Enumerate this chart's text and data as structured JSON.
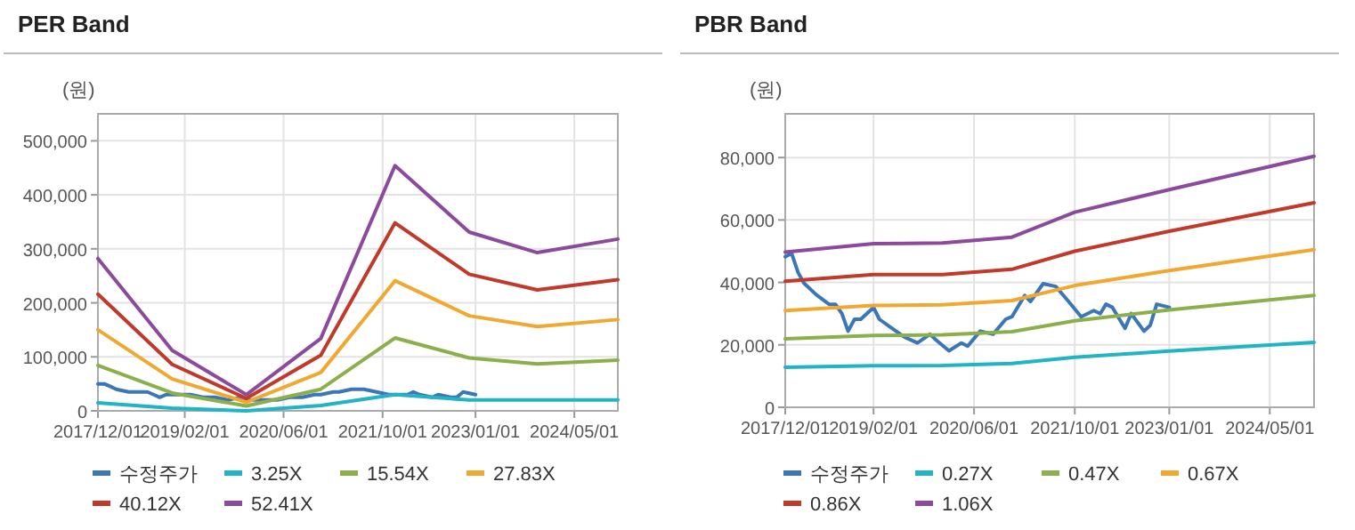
{
  "chart_data": [
    {
      "type": "line",
      "title": "PER Band",
      "ylabel": "(원)",
      "xlim": [
        "2017-12-01",
        "2024-12-01"
      ],
      "ylim": [
        0,
        550000
      ],
      "xticks": [
        {
          "value": "2017-12-01",
          "label": "2017/12/01"
        },
        {
          "value": "2019-02-01",
          "label": "2019/02/01"
        },
        {
          "value": "2020-06-01",
          "label": "2020/06/01"
        },
        {
          "value": "2021-10-01",
          "label": "2021/10/01"
        },
        {
          "value": "2023-01-01",
          "label": "2023/01/01"
        },
        {
          "value": "2024-05-01",
          "label": "2024/05/01"
        }
      ],
      "yticks": [
        0,
        {
          "value": 100000,
          "label": "100,000"
        },
        {
          "value": 200000,
          "label": "200,000"
        },
        {
          "value": 300000,
          "label": "300,000"
        },
        {
          "value": 400000,
          "label": "400,000"
        },
        {
          "value": 500000,
          "label": "500,000"
        }
      ],
      "grid": true,
      "legend": "bottom",
      "series": [
        {
          "name": "수정주가",
          "color": "#3a76b8",
          "x": [
            "2017-12",
            "2018-01",
            "2018-02",
            "2018-03",
            "2018-05",
            "2018-07",
            "2018-08",
            "2018-09",
            "2018-10",
            "2018-11",
            "2018-12",
            "2019-02",
            "2019-03",
            "2019-05",
            "2019-07",
            "2019-09",
            "2019-11",
            "2019-12",
            "2020-02",
            "2020-04",
            "2020-05",
            "2020-07",
            "2020-09",
            "2020-11",
            "2020-12",
            "2021-02",
            "2021-03",
            "2021-05",
            "2021-07",
            "2021-09",
            "2021-11",
            "2022-01",
            "2022-02",
            "2022-03",
            "2022-04",
            "2022-06",
            "2022-07",
            "2022-09",
            "2022-10",
            "2022-11",
            "2023-01"
          ],
          "values": [
            50000,
            50000,
            45000,
            40000,
            35000,
            35000,
            35000,
            30000,
            25000,
            30000,
            30000,
            30000,
            30000,
            25000,
            25000,
            20000,
            25000,
            20000,
            20000,
            20000,
            20000,
            25000,
            25000,
            30000,
            30000,
            35000,
            35000,
            40000,
            40000,
            35000,
            30000,
            30000,
            30000,
            35000,
            30000,
            25000,
            30000,
            25000,
            25000,
            35000,
            30000
          ]
        },
        {
          "name": "3.25X",
          "color": "#22b3c4",
          "x": [
            "2017-12",
            "2018-12",
            "2019-12",
            "2020-12",
            "2021-12",
            "2022-12",
            "2023-11",
            "2024-12"
          ],
          "values": [
            15000,
            5000,
            0,
            10000,
            30000,
            20000,
            20000,
            20000
          ]
        },
        {
          "name": "15.54X",
          "color": "#8bb04b",
          "x": [
            "2017-12",
            "2018-12",
            "2019-12",
            "2020-12",
            "2021-12",
            "2022-12",
            "2023-11",
            "2024-12"
          ],
          "values": [
            84000,
            33000,
            9000,
            40000,
            135000,
            98000,
            87000,
            94000
          ]
        },
        {
          "name": "27.83X",
          "color": "#f0a830",
          "x": [
            "2017-12",
            "2018-12",
            "2019-12",
            "2020-12",
            "2021-12",
            "2022-12",
            "2023-11",
            "2024-12"
          ],
          "values": [
            150000,
            59000,
            16000,
            71000,
            241000,
            176000,
            156000,
            169000
          ]
        },
        {
          "name": "40.12X",
          "color": "#c0392b",
          "x": [
            "2017-12",
            "2018-12",
            "2019-12",
            "2020-12",
            "2021-12",
            "2022-12",
            "2023-11",
            "2024-12"
          ],
          "values": [
            216000,
            86000,
            23000,
            103000,
            348000,
            253000,
            224000,
            243000
          ]
        },
        {
          "name": "52.41X",
          "color": "#8b4a9c",
          "x": [
            "2017-12",
            "2018-12",
            "2019-12",
            "2020-12",
            "2021-12",
            "2022-12",
            "2023-11",
            "2024-12"
          ],
          "values": [
            282000,
            112000,
            30000,
            134000,
            454000,
            331000,
            293000,
            318000
          ]
        }
      ]
    },
    {
      "type": "line",
      "title": "PBR Band",
      "ylabel": "(원)",
      "xlim": [
        "2017-12-01",
        "2024-12-01"
      ],
      "ylim": [
        0,
        94000
      ],
      "xticks": [
        {
          "value": "2017-12-01",
          "label": "2017/12/01"
        },
        {
          "value": "2019-02-01",
          "label": "2019/02/01"
        },
        {
          "value": "2020-06-01",
          "label": "2020/06/01"
        },
        {
          "value": "2021-10-01",
          "label": "2021/10/01"
        },
        {
          "value": "2023-01-01",
          "label": "2023/01/01"
        },
        {
          "value": "2024-05-01",
          "label": "2024/05/01"
        }
      ],
      "yticks": [
        0,
        {
          "value": 20000,
          "label": "20,000"
        },
        {
          "value": 40000,
          "label": "40,000"
        },
        {
          "value": 60000,
          "label": "60,000"
        },
        {
          "value": 80000,
          "label": "80,000"
        }
      ],
      "grid": true,
      "legend": "bottom",
      "series": [
        {
          "name": "수정주가",
          "color": "#3a76b8",
          "x": [
            "2017-12",
            "2018-01",
            "2018-02",
            "2018-03",
            "2018-05",
            "2018-07",
            "2018-08",
            "2018-09",
            "2018-10",
            "2018-11",
            "2018-12",
            "2019-02",
            "2019-03",
            "2019-05",
            "2019-07",
            "2019-09",
            "2019-11",
            "2019-12",
            "2020-02",
            "2020-04",
            "2020-05",
            "2020-07",
            "2020-09",
            "2020-11",
            "2020-12",
            "2021-02",
            "2021-03",
            "2021-05",
            "2021-07",
            "2021-09",
            "2021-11",
            "2022-01",
            "2022-02",
            "2022-03",
            "2022-04",
            "2022-06",
            "2022-07",
            "2022-09",
            "2022-10",
            "2022-11",
            "2023-01"
          ],
          "values": [
            48200,
            49300,
            43200,
            39800,
            36000,
            33000,
            33000,
            30000,
            24400,
            28200,
            28200,
            32000,
            28200,
            25300,
            22500,
            20600,
            23400,
            21500,
            18100,
            20600,
            19600,
            24400,
            23400,
            28200,
            29000,
            35800,
            33900,
            39600,
            38700,
            33900,
            29000,
            31000,
            30000,
            33000,
            32000,
            25300,
            30000,
            24400,
            26300,
            33000,
            32000
          ]
        },
        {
          "name": "0.27X",
          "color": "#22b3c4",
          "x": [
            "2017-12",
            "2019-02",
            "2020-01",
            "2020-12",
            "2021-10",
            "2023-01",
            "2024-12"
          ],
          "values": [
            12800,
            13300,
            13400,
            14000,
            16000,
            18000,
            20800
          ]
        },
        {
          "name": "0.47X",
          "color": "#8bb04b",
          "x": [
            "2017-12",
            "2019-02",
            "2020-01",
            "2020-12",
            "2021-10",
            "2023-01",
            "2024-12"
          ],
          "values": [
            21900,
            23000,
            23200,
            24200,
            27700,
            31200,
            35800
          ]
        },
        {
          "name": "0.67X",
          "color": "#f0a830",
          "x": [
            "2017-12",
            "2019-02",
            "2020-01",
            "2020-12",
            "2021-10",
            "2023-01",
            "2024-12"
          ],
          "values": [
            31000,
            32600,
            32800,
            34200,
            39000,
            43800,
            50500
          ]
        },
        {
          "name": "0.86X",
          "color": "#c0392b",
          "x": [
            "2017-12",
            "2019-02",
            "2020-01",
            "2020-12",
            "2021-10",
            "2023-01",
            "2024-12"
          ],
          "values": [
            40400,
            42500,
            42500,
            44200,
            50000,
            56400,
            65500
          ]
        },
        {
          "name": "1.06X",
          "color": "#8b4a9c",
          "x": [
            "2017-12",
            "2019-02",
            "2020-01",
            "2020-12",
            "2021-10",
            "2023-01",
            "2024-12"
          ],
          "values": [
            49700,
            52400,
            52600,
            54500,
            62500,
            69700,
            80400
          ]
        }
      ]
    }
  ]
}
